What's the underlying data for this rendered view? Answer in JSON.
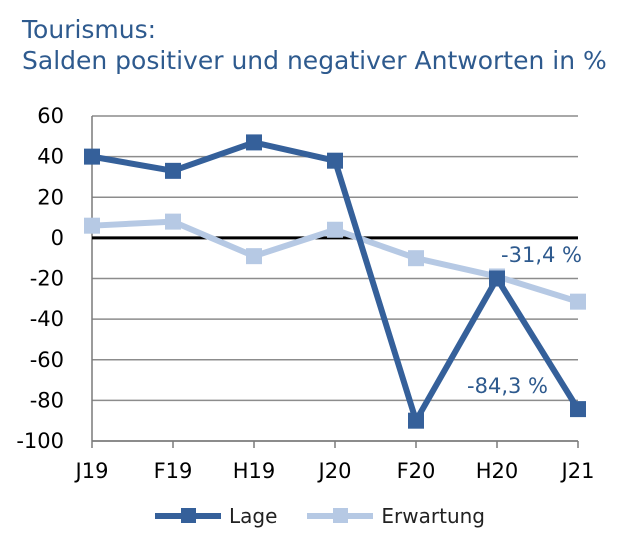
{
  "title": {
    "line1": "Tourismus:",
    "line2": "Salden positiver und negativer Antworten in %"
  },
  "chart_data": {
    "type": "line",
    "categories": [
      "J19",
      "F19",
      "H19",
      "J20",
      "F20",
      "H20",
      "J21"
    ],
    "series": [
      {
        "name": "Lage",
        "values": [
          40,
          33,
          47,
          38,
          -90,
          -20,
          -84.3
        ],
        "color": "#35609a"
      },
      {
        "name": "Erwartung",
        "values": [
          6,
          8,
          -9,
          4,
          -10,
          -19,
          -31.4
        ],
        "color": "#b6c9e4"
      }
    ],
    "ylim": [
      -100,
      60
    ],
    "yticks": [
      "60",
      "40",
      "20",
      "0",
      "-20",
      "-40",
      "-60",
      "-80",
      "-100"
    ],
    "grid": true,
    "legend_position": "bottom",
    "annotations": [
      {
        "text": "-31,4 %",
        "series": "Erwartung",
        "category": "J21"
      },
      {
        "text": "-84,3 %",
        "series": "Lage",
        "category": "J21"
      }
    ]
  }
}
